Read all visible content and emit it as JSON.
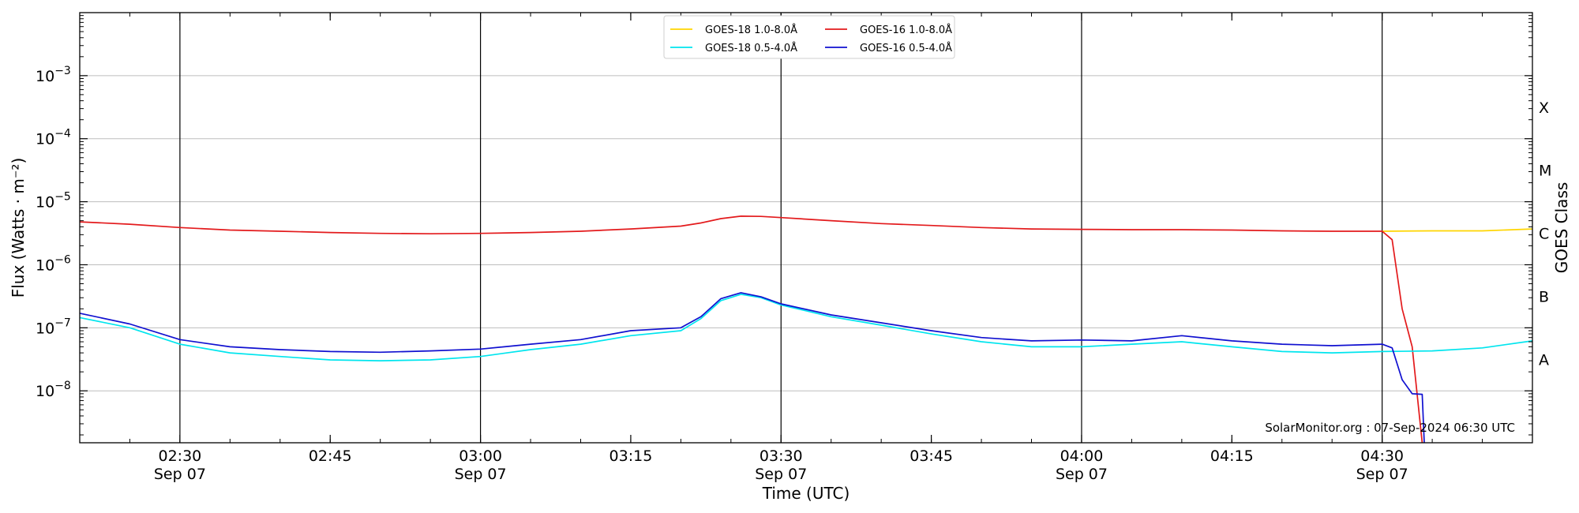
{
  "chart_data": {
    "type": "line",
    "xlabel": "Time (UTC)",
    "ylabel": "Flux (Watts · m⁻²)",
    "ylabel_right": "GOES Class",
    "y_scale": "log",
    "ylim": [
      1.5e-09,
      0.01
    ],
    "xlim": [
      "02:20",
      "04:45"
    ],
    "grid": "horizontal at decades, vertical at half hours",
    "legend_placement": "top-center",
    "watermark": "SolarMonitor.org : 07-Sep-2024 06:30 UTC",
    "x_ticks": [
      {
        "time": "02:30",
        "date": "Sep 07"
      },
      {
        "time": "02:45",
        "date": ""
      },
      {
        "time": "03:00",
        "date": "Sep 07"
      },
      {
        "time": "03:15",
        "date": ""
      },
      {
        "time": "03:30",
        "date": "Sep 07"
      },
      {
        "time": "03:45",
        "date": ""
      },
      {
        "time": "04:00",
        "date": "Sep 07"
      },
      {
        "time": "04:15",
        "date": ""
      },
      {
        "time": "04:30",
        "date": "Sep 07"
      }
    ],
    "y_ticks": [
      {
        "value": 1e-08,
        "base": "10",
        "exp": "−8"
      },
      {
        "value": 1e-07,
        "base": "10",
        "exp": "−7"
      },
      {
        "value": 1e-06,
        "base": "10",
        "exp": "−6"
      },
      {
        "value": 1e-05,
        "base": "10",
        "exp": "−5"
      },
      {
        "value": 0.0001,
        "base": "10",
        "exp": "−4"
      },
      {
        "value": 0.001,
        "base": "10",
        "exp": "−3"
      }
    ],
    "goes_classes": [
      {
        "label": "A",
        "value": 3.16e-08
      },
      {
        "label": "B",
        "value": 3.16e-07
      },
      {
        "label": "C",
        "value": 3.16e-06
      },
      {
        "label": "M",
        "value": 3.16e-05
      },
      {
        "label": "X",
        "value": 0.000316
      }
    ],
    "series": [
      {
        "name": "GOES-18 1.0-8.0Å",
        "color": "#ffd500",
        "points": [
          [
            "04:30",
            3.4e-06
          ],
          [
            "04:35",
            3.45e-06
          ],
          [
            "04:40",
            3.45e-06
          ],
          [
            "04:45",
            3.7e-06
          ]
        ]
      },
      {
        "name": "GOES-16 1.0-8.0Å",
        "color": "#e31a1c",
        "points": [
          [
            "02:20",
            4.8e-06
          ],
          [
            "02:25",
            4.4e-06
          ],
          [
            "02:30",
            3.9e-06
          ],
          [
            "02:35",
            3.55e-06
          ],
          [
            "02:40",
            3.4e-06
          ],
          [
            "02:45",
            3.25e-06
          ],
          [
            "02:50",
            3.15e-06
          ],
          [
            "02:55",
            3.1e-06
          ],
          [
            "03:00",
            3.15e-06
          ],
          [
            "03:05",
            3.25e-06
          ],
          [
            "03:10",
            3.4e-06
          ],
          [
            "03:15",
            3.7e-06
          ],
          [
            "03:20",
            4.1e-06
          ],
          [
            "03:22",
            4.6e-06
          ],
          [
            "03:24",
            5.4e-06
          ],
          [
            "03:26",
            5.9e-06
          ],
          [
            "03:28",
            5.85e-06
          ],
          [
            "03:30",
            5.6e-06
          ],
          [
            "03:35",
            5e-06
          ],
          [
            "03:40",
            4.5e-06
          ],
          [
            "03:45",
            4.2e-06
          ],
          [
            "03:50",
            3.9e-06
          ],
          [
            "03:55",
            3.7e-06
          ],
          [
            "04:00",
            3.65e-06
          ],
          [
            "04:05",
            3.6e-06
          ],
          [
            "04:10",
            3.6e-06
          ],
          [
            "04:15",
            3.55e-06
          ],
          [
            "04:20",
            3.45e-06
          ],
          [
            "04:25",
            3.4e-06
          ],
          [
            "04:30",
            3.4e-06
          ],
          [
            "04:31",
            2.5e-06
          ],
          [
            "04:32",
            2e-07
          ],
          [
            "04:33",
            5e-08
          ],
          [
            "04:34",
            1.5e-09
          ]
        ]
      },
      {
        "name": "GOES-18 0.5-4.0Å",
        "color": "#00e5ee",
        "points": [
          [
            "02:20",
            1.45e-07
          ],
          [
            "02:25",
            1e-07
          ],
          [
            "02:30",
            5.5e-08
          ],
          [
            "02:35",
            4e-08
          ],
          [
            "02:40",
            3.5e-08
          ],
          [
            "02:45",
            3.1e-08
          ],
          [
            "02:50",
            3e-08
          ],
          [
            "02:55",
            3.1e-08
          ],
          [
            "03:00",
            3.5e-08
          ],
          [
            "03:05",
            4.5e-08
          ],
          [
            "03:10",
            5.5e-08
          ],
          [
            "03:15",
            7.5e-08
          ],
          [
            "03:20",
            9e-08
          ],
          [
            "03:22",
            1.4e-07
          ],
          [
            "03:24",
            2.7e-07
          ],
          [
            "03:26",
            3.4e-07
          ],
          [
            "03:28",
            3e-07
          ],
          [
            "03:30",
            2.3e-07
          ],
          [
            "03:35",
            1.5e-07
          ],
          [
            "03:40",
            1.1e-07
          ],
          [
            "03:45",
            8e-08
          ],
          [
            "03:50",
            6e-08
          ],
          [
            "03:55",
            5e-08
          ],
          [
            "04:00",
            5e-08
          ],
          [
            "04:05",
            5.5e-08
          ],
          [
            "04:10",
            6e-08
          ],
          [
            "04:15",
            5e-08
          ],
          [
            "04:20",
            4.2e-08
          ],
          [
            "04:25",
            4e-08
          ],
          [
            "04:30",
            4.2e-08
          ],
          [
            "04:35",
            4.3e-08
          ],
          [
            "04:40",
            4.8e-08
          ],
          [
            "04:45",
            6.2e-08
          ]
        ]
      },
      {
        "name": "GOES-16 0.5-4.0Å",
        "color": "#1010d0",
        "points": [
          [
            "02:20",
            1.7e-07
          ],
          [
            "02:25",
            1.15e-07
          ],
          [
            "02:30",
            6.5e-08
          ],
          [
            "02:35",
            5e-08
          ],
          [
            "02:40",
            4.5e-08
          ],
          [
            "02:45",
            4.2e-08
          ],
          [
            "02:50",
            4.1e-08
          ],
          [
            "02:55",
            4.3e-08
          ],
          [
            "03:00",
            4.6e-08
          ],
          [
            "03:05",
            5.5e-08
          ],
          [
            "03:10",
            6.5e-08
          ],
          [
            "03:15",
            9e-08
          ],
          [
            "03:20",
            1e-07
          ],
          [
            "03:22",
            1.5e-07
          ],
          [
            "03:24",
            2.9e-07
          ],
          [
            "03:26",
            3.6e-07
          ],
          [
            "03:28",
            3.1e-07
          ],
          [
            "03:30",
            2.4e-07
          ],
          [
            "03:35",
            1.6e-07
          ],
          [
            "03:40",
            1.2e-07
          ],
          [
            "03:45",
            9e-08
          ],
          [
            "03:50",
            7e-08
          ],
          [
            "03:55",
            6.2e-08
          ],
          [
            "04:00",
            6.4e-08
          ],
          [
            "04:05",
            6.2e-08
          ],
          [
            "04:10",
            7.5e-08
          ],
          [
            "04:15",
            6.2e-08
          ],
          [
            "04:20",
            5.5e-08
          ],
          [
            "04:25",
            5.2e-08
          ],
          [
            "04:30",
            5.5e-08
          ],
          [
            "04:31",
            4.8e-08
          ],
          [
            "04:32",
            1.5e-08
          ],
          [
            "04:33",
            9e-09
          ],
          [
            "04:34",
            8.8e-09
          ],
          [
            "04:34.2",
            1.5e-09
          ]
        ]
      }
    ],
    "legend_order": [
      0,
      2,
      1,
      3
    ]
  }
}
